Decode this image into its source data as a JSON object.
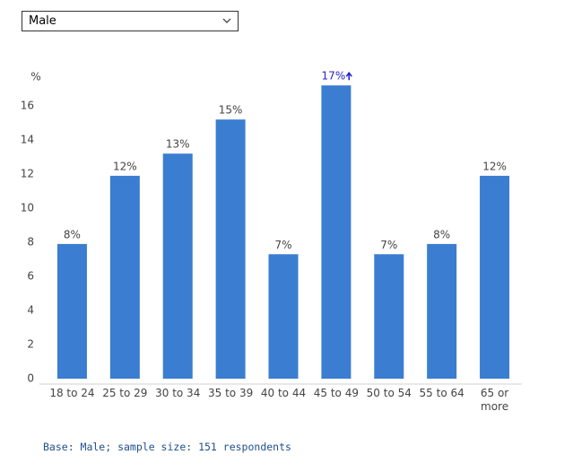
{
  "dropdown": {
    "selected": "Male"
  },
  "chart_data": {
    "type": "bar",
    "y_label": "%",
    "categories": [
      "18 to 24",
      "25 to 29",
      "30 to 34",
      "35 to 39",
      "40 to 44",
      "45 to 49",
      "50 to 54",
      "55 to 64",
      "65 or more"
    ],
    "values": [
      7.9,
      11.9,
      13.2,
      15.2,
      7.3,
      17.2,
      7.3,
      7.9,
      11.9
    ],
    "value_labels": [
      "8%",
      "12%",
      "13%",
      "15%",
      "7%",
      "17%",
      "7%",
      "8%",
      "12%"
    ],
    "significant_increase": [
      false,
      false,
      false,
      false,
      false,
      true,
      false,
      false,
      false
    ],
    "significant_color": "#2626c4",
    "color": "#3b7dd0",
    "ylim": [
      0,
      18
    ],
    "yticks": [
      0,
      2,
      4,
      6,
      8,
      10,
      12,
      14,
      16
    ],
    "grid": false
  },
  "footnote": "Base: Male; sample size: 151 respondents"
}
